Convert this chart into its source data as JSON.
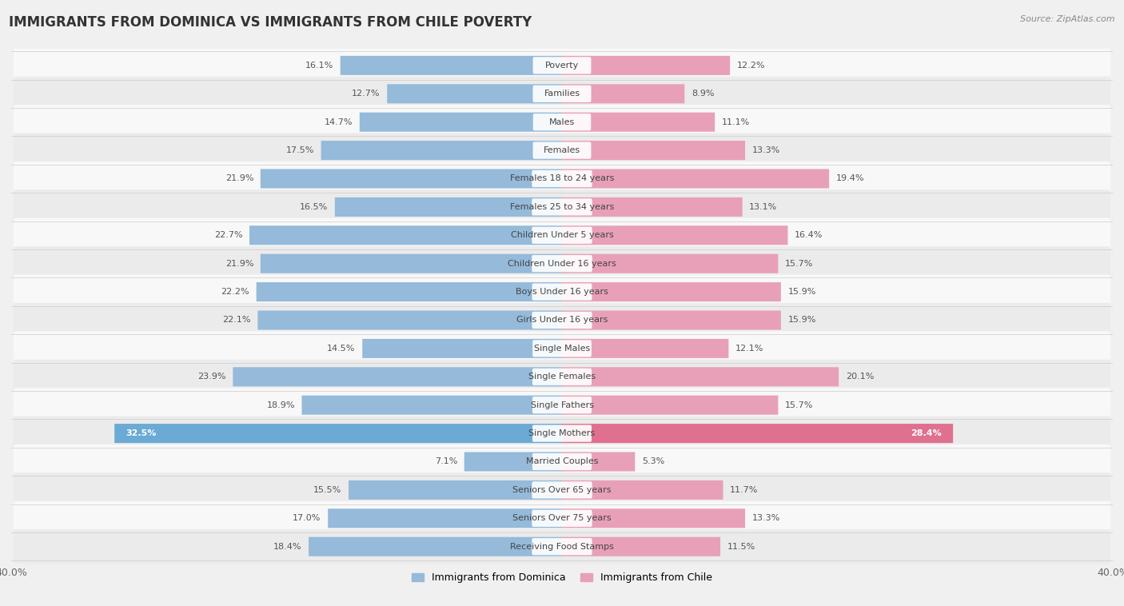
{
  "title": "IMMIGRANTS FROM DOMINICA VS IMMIGRANTS FROM CHILE POVERTY",
  "source": "Source: ZipAtlas.com",
  "categories": [
    "Poverty",
    "Families",
    "Males",
    "Females",
    "Females 18 to 24 years",
    "Females 25 to 34 years",
    "Children Under 5 years",
    "Children Under 16 years",
    "Boys Under 16 years",
    "Girls Under 16 years",
    "Single Males",
    "Single Females",
    "Single Fathers",
    "Single Mothers",
    "Married Couples",
    "Seniors Over 65 years",
    "Seniors Over 75 years",
    "Receiving Food Stamps"
  ],
  "dominica_values": [
    16.1,
    12.7,
    14.7,
    17.5,
    21.9,
    16.5,
    22.7,
    21.9,
    22.2,
    22.1,
    14.5,
    23.9,
    18.9,
    32.5,
    7.1,
    15.5,
    17.0,
    18.4
  ],
  "chile_values": [
    12.2,
    8.9,
    11.1,
    13.3,
    19.4,
    13.1,
    16.4,
    15.7,
    15.9,
    15.9,
    12.1,
    20.1,
    15.7,
    28.4,
    5.3,
    11.7,
    13.3,
    11.5
  ],
  "dominica_color": "#95bada",
  "chile_color": "#e8a0b8",
  "dominica_highlight_color": "#6aaad4",
  "chile_highlight_color": "#e07090",
  "highlight_rows": [
    13
  ],
  "xlim": 40.0,
  "background_color": "#f0f0f0",
  "row_color_light": "#f8f8f8",
  "row_color_dark": "#ebebeb",
  "legend_label_dominica": "Immigrants from Dominica",
  "legend_label_chile": "Immigrants from Chile",
  "title_fontsize": 12,
  "source_fontsize": 8,
  "label_fontsize": 8,
  "value_fontsize": 8,
  "bar_height": 0.68
}
